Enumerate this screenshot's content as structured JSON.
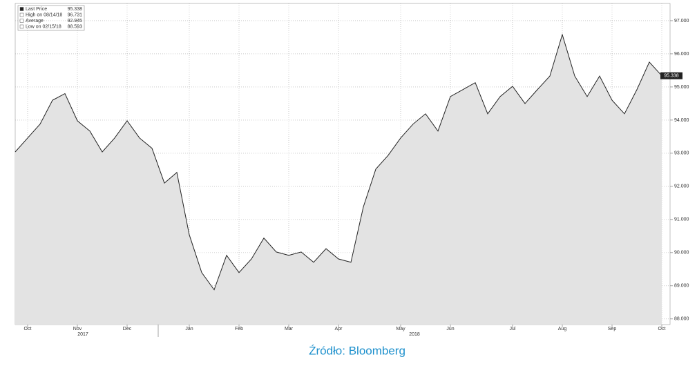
{
  "chart_data": {
    "type": "area",
    "categories": [
      null,
      "Oct",
      null,
      null,
      null,
      "Nov",
      null,
      null,
      null,
      "Dec",
      null,
      null,
      null,
      null,
      "Jan",
      null,
      null,
      null,
      "Feb",
      null,
      null,
      null,
      "Mar",
      null,
      null,
      null,
      "Apr",
      null,
      null,
      null,
      null,
      "May",
      null,
      null,
      null,
      "Jun",
      null,
      null,
      null,
      null,
      "Jul",
      null,
      null,
      null,
      "Aug",
      null,
      null,
      null,
      "Sep",
      null,
      null,
      null,
      "Oct"
    ],
    "values": [
      93.04,
      93.46,
      93.88,
      94.6,
      94.8,
      93.98,
      93.67,
      93.04,
      93.46,
      93.98,
      93.46,
      93.15,
      92.1,
      92.42,
      90.54,
      89.4,
      88.88,
      89.92,
      89.4,
      89.81,
      90.44,
      90.02,
      89.92,
      90.02,
      89.71,
      90.12,
      89.81,
      89.71,
      91.38,
      92.52,
      92.94,
      93.46,
      93.88,
      94.19,
      93.67,
      94.71,
      94.92,
      95.13,
      94.19,
      94.71,
      95.02,
      94.5,
      94.92,
      95.33,
      96.58,
      95.33,
      94.71,
      95.33,
      94.6,
      94.19,
      94.92,
      95.75,
      95.338
    ],
    "color": "#222222",
    "fill": "#e3e3e3",
    "ylim": [
      87.83,
      97.52
    ],
    "yticks": [
      {
        "value": 88,
        "label": "88.000"
      },
      {
        "value": 89,
        "label": "89.000"
      },
      {
        "value": 90,
        "label": "90.000"
      },
      {
        "value": 91,
        "label": "91.000"
      },
      {
        "value": 92,
        "label": "92.000"
      },
      {
        "value": 93,
        "label": "93.000"
      },
      {
        "value": 94,
        "label": "94.000"
      },
      {
        "value": 95,
        "label": "95.000"
      },
      {
        "value": 96,
        "label": "96.000"
      },
      {
        "value": 97,
        "label": "97.000"
      }
    ],
    "grid": true,
    "years": [
      "2017",
      "2018"
    ],
    "stats": [
      {
        "label": "Last Price",
        "value": 95.338
      },
      {
        "label": "High on 08/14/18",
        "value": 96.731
      },
      {
        "label": "Average",
        "value": 92.945
      },
      {
        "label": "Low on 02/15/18",
        "value": 88.593
      }
    ]
  },
  "source": "Źródło: Bloomberg"
}
